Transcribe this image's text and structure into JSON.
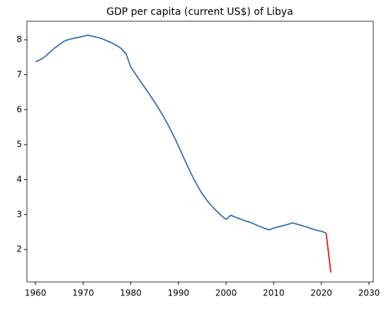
{
  "chart_data": {
    "type": "line",
    "title": "GDP per capita (current US$) of Libya",
    "x": [
      1960,
      1961,
      1962,
      1963,
      1964,
      1965,
      1966,
      1967,
      1968,
      1969,
      1970,
      1971,
      1972,
      1973,
      1974,
      1975,
      1976,
      1977,
      1978,
      1979,
      1980,
      1981,
      1982,
      1983,
      1984,
      1985,
      1986,
      1987,
      1988,
      1989,
      1990,
      1991,
      1992,
      1993,
      1994,
      1995,
      1996,
      1997,
      1998,
      1999,
      2000,
      2001,
      2002,
      2003,
      2004,
      2005,
      2006,
      2007,
      2008,
      2009,
      2010,
      2011,
      2012,
      2013,
      2014,
      2015,
      2016,
      2017,
      2018,
      2019,
      2020,
      2021,
      2022
    ],
    "series": [
      {
        "color": "#3a6ea5",
        "values": [
          7.37,
          7.43,
          7.52,
          7.64,
          7.76,
          7.86,
          7.96,
          8.01,
          8.04,
          8.07,
          8.1,
          8.13,
          8.1,
          8.07,
          8.03,
          7.97,
          7.91,
          7.84,
          7.75,
          7.6,
          7.22,
          7.02,
          6.82,
          6.62,
          6.42,
          6.22,
          6.0,
          5.77,
          5.52,
          5.25,
          4.96,
          4.66,
          4.36,
          4.08,
          3.82,
          3.59,
          3.4,
          3.24,
          3.1,
          2.97,
          2.86,
          2.98,
          2.92,
          2.87,
          2.82,
          2.78,
          2.72,
          2.66,
          2.61,
          2.56,
          2.61,
          2.65,
          2.68,
          2.72,
          2.76,
          2.72,
          2.68,
          2.64,
          2.59,
          2.55,
          2.52,
          2.47,
          null
        ]
      },
      {
        "color": "#e8141c",
        "values": [
          null,
          null,
          null,
          null,
          null,
          null,
          null,
          null,
          null,
          null,
          null,
          null,
          null,
          null,
          null,
          null,
          null,
          null,
          null,
          null,
          null,
          null,
          null,
          null,
          null,
          null,
          null,
          null,
          null,
          null,
          null,
          null,
          null,
          null,
          null,
          null,
          null,
          null,
          null,
          null,
          null,
          null,
          null,
          null,
          null,
          null,
          null,
          null,
          null,
          null,
          null,
          null,
          null,
          null,
          null,
          null,
          null,
          null,
          null,
          null,
          null,
          2.47,
          1.34
        ]
      }
    ],
    "xlim": [
      1958.2,
      2030.9
    ],
    "xticks": [
      1960,
      1970,
      1980,
      1990,
      2000,
      2010,
      2020,
      2030
    ],
    "ylim": [
      1.07,
      8.53
    ],
    "yticks": [
      2,
      3,
      4,
      5,
      6,
      7,
      8
    ]
  }
}
